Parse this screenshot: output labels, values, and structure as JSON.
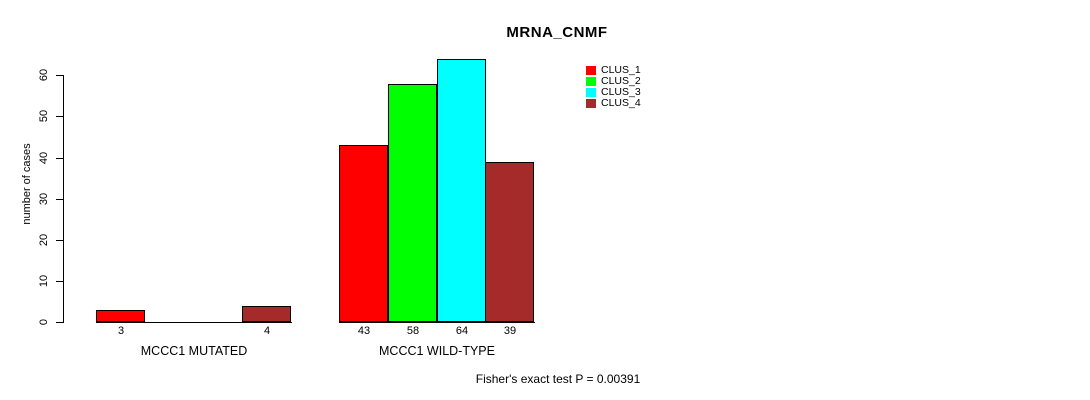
{
  "chart_data": {
    "type": "bar",
    "title": "MRNA_CNMF",
    "ylabel": "number of cases",
    "xlabel": "",
    "ylim": [
      0,
      60
    ],
    "yticks": [
      0,
      10,
      20,
      30,
      40,
      50,
      60
    ],
    "grid": false,
    "legend_position": "top-right",
    "series": [
      {
        "name": "CLUS_1",
        "color": "#FF0000"
      },
      {
        "name": "CLUS_2",
        "color": "#00FF00"
      },
      {
        "name": "CLUS_3",
        "color": "#00FFFF"
      },
      {
        "name": "CLUS_4",
        "color": "#A52A2A"
      }
    ],
    "groups": [
      {
        "label": "MCCC1 MUTATED",
        "values": [
          3,
          0,
          0,
          4
        ],
        "visible_value_labels": [
          "3",
          "4"
        ]
      },
      {
        "label": "MCCC1 WILD-TYPE",
        "values": [
          43,
          58,
          64,
          39
        ],
        "visible_value_labels": [
          "43",
          "58",
          "64",
          "39"
        ]
      }
    ],
    "footnote": "Fisher's exact test P = 0.00391"
  }
}
